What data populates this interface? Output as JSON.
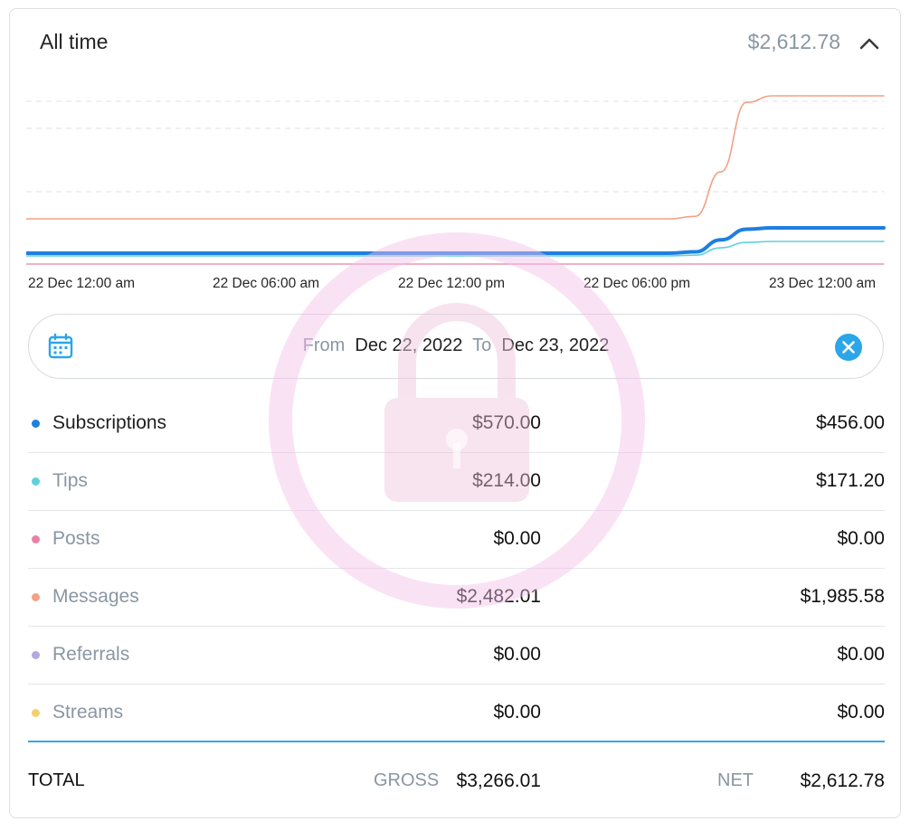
{
  "header": {
    "title": "All time",
    "total": "$2,612.78"
  },
  "colors": {
    "subscriptions": "#1e7fe0",
    "tips": "#5fd0dd",
    "posts": "#e882a2",
    "messages": "#f2a185",
    "referrals": "#b6a8dd",
    "streams": "#f4cf6c",
    "accent": "#2ba6e8"
  },
  "chart_data": {
    "type": "line",
    "x_labels": [
      "22 Dec 12:00 am",
      "22 Dec 06:00 am",
      "22 Dec 12:00 pm",
      "22 Dec 06:00 pm",
      "23 Dec 12:00 am"
    ],
    "x": [
      0,
      0.5,
      0.75,
      0.78,
      0.81,
      0.84,
      0.87,
      0.92,
      1
    ],
    "series": [
      {
        "name": "Messages",
        "color": "#f2a185",
        "width": 1.6,
        "values": [
          0,
          0,
          0,
          50,
          950,
          2350,
          2482,
          2482,
          2482
        ]
      },
      {
        "name": "Subscriptions",
        "color": "#1e7fe0",
        "width": 4,
        "values": [
          0,
          0,
          0,
          30,
          300,
          540,
          570,
          570,
          570
        ]
      },
      {
        "name": "Tips",
        "color": "#5fd0dd",
        "width": 1.6,
        "values": [
          0,
          0,
          0,
          10,
          120,
          200,
          214,
          214,
          214
        ]
      },
      {
        "name": "Posts",
        "color": "#e882a2",
        "width": 1.2,
        "values": [
          0,
          0,
          0,
          0,
          0,
          0,
          0,
          0,
          0
        ]
      }
    ]
  },
  "date_range": {
    "from_label": "From",
    "from_date": "Dec 22, 2022",
    "to_label": "To",
    "to_date": "Dec 23, 2022"
  },
  "rows": [
    {
      "label": "Subscriptions",
      "gross": "$570.00",
      "net": "$456.00"
    },
    {
      "label": "Tips",
      "gross": "$214.00",
      "net": "$171.20"
    },
    {
      "label": "Posts",
      "gross": "$0.00",
      "net": "$0.00"
    },
    {
      "label": "Messages",
      "gross": "$2,482.01",
      "net": "$1,985.58"
    },
    {
      "label": "Referrals",
      "gross": "$0.00",
      "net": "$0.00"
    },
    {
      "label": "Streams",
      "gross": "$0.00",
      "net": "$0.00"
    }
  ],
  "totals": {
    "label": "TOTAL",
    "gross_label": "GROSS",
    "gross": "$3,266.01",
    "net_label": "NET",
    "net": "$2,612.78"
  }
}
